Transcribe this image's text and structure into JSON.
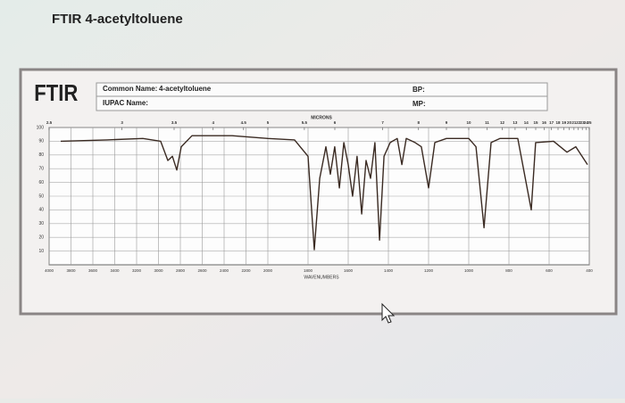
{
  "title": "FTIR 4-acetyltoluene",
  "header": {
    "logo": "FTIR",
    "common_name_label": "Common Name:",
    "common_name": "4-acetyltoluene",
    "iupac_label": "IUPAC Name:",
    "bp_label": "BP:",
    "mp_label": "MP:"
  },
  "chart_data": {
    "type": "line",
    "x_label": "WAVENUMBERS",
    "x2_label": "MICRONS",
    "x": [
      3894,
      3469,
      3143,
      2980,
      2914,
      2873,
      2833,
      2792,
      2694,
      2327,
      2000,
      1867,
      1800,
      1769,
      1742,
      1711,
      1689,
      1667,
      1644,
      1622,
      1600,
      1578,
      1556,
      1533,
      1511,
      1489,
      1467,
      1444,
      1422,
      1391,
      1356,
      1333,
      1311,
      1267,
      1236,
      1200,
      1169,
      1111,
      1000,
      964,
      924,
      889,
      844,
      756,
      689,
      667,
      578,
      511,
      467,
      409
    ],
    "series": [
      {
        "color": "#3a2a22",
        "values": [
          90,
          91,
          92,
          90,
          76,
          79,
          69,
          86,
          94,
          94,
          92,
          91,
          79,
          11,
          63,
          86,
          66,
          86,
          56,
          89,
          73,
          50,
          79,
          37,
          76,
          63,
          89,
          18,
          79,
          89,
          92,
          73,
          92,
          89,
          86,
          56,
          89,
          92,
          92,
          86,
          27,
          89,
          92,
          92,
          40,
          89,
          90,
          82,
          86,
          73
        ]
      }
    ],
    "xlim": [
      4000,
      400
    ],
    "x_break": 2000,
    "xticks": [
      4000,
      3800,
      3600,
      3400,
      3200,
      3000,
      2800,
      2600,
      2400,
      2200,
      2000,
      1800,
      1600,
      1400,
      1200,
      1000,
      800,
      600,
      400
    ],
    "x2ticks": [
      2.5,
      3,
      3.5,
      4,
      4.5,
      5,
      5.5,
      6,
      7,
      8,
      9,
      10,
      11,
      12,
      13,
      14,
      15,
      16,
      17,
      18,
      19,
      20,
      21,
      22,
      23,
      24,
      25
    ],
    "ylim": [
      0,
      100
    ],
    "yticks": [
      10,
      20,
      30,
      40,
      50,
      60,
      70,
      80,
      90,
      100
    ],
    "grid": true
  }
}
